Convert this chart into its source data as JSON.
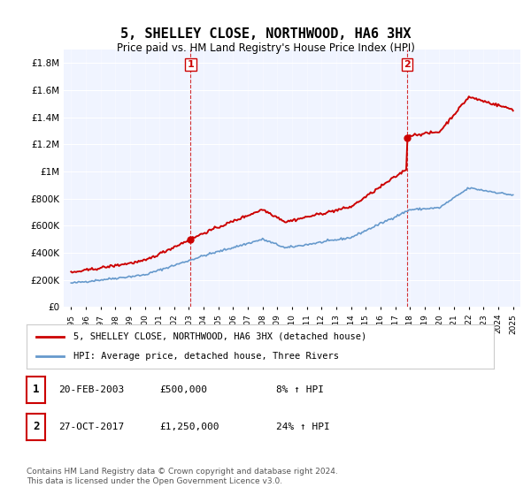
{
  "title": "5, SHELLEY CLOSE, NORTHWOOD, HA6 3HX",
  "subtitle": "Price paid vs. HM Land Registry's House Price Index (HPI)",
  "sale1_date": "20-FEB-2003",
  "sale1_price": "£500,000",
  "sale1_hpi": "8% ↑ HPI",
  "sale1_year": 2003.12,
  "sale1_value": 500000,
  "sale2_date": "27-OCT-2017",
  "sale2_price": "£1,250,000",
  "sale2_hpi": "24% ↑ HPI",
  "sale2_year": 2017.82,
  "sale2_value": 1250000,
  "legend_label1": "5, SHELLEY CLOSE, NORTHWOOD, HA6 3HX (detached house)",
  "legend_label2": "HPI: Average price, detached house, Three Rivers",
  "footer": "Contains HM Land Registry data © Crown copyright and database right 2024.\nThis data is licensed under the Open Government Licence v3.0.",
  "price_color": "#cc0000",
  "hpi_color": "#6699cc",
  "vline_color": "#cc0000",
  "background_color": "#ffffff",
  "plot_bg_color": "#f0f4ff",
  "ylim": [
    0,
    1900000
  ],
  "xlim_start": 1994.5,
  "xlim_end": 2025.5,
  "yticks": [
    0,
    200000,
    400000,
    600000,
    800000,
    1000000,
    1200000,
    1400000,
    1600000,
    1800000
  ],
  "ytick_labels": [
    "£0",
    "£200K",
    "£400K",
    "£600K",
    "£800K",
    "£1M",
    "£1.2M",
    "£1.4M",
    "£1.6M",
    "£1.8M"
  ],
  "xticks": [
    1995,
    1996,
    1997,
    1998,
    1999,
    2000,
    2001,
    2002,
    2003,
    2004,
    2005,
    2006,
    2007,
    2008,
    2009,
    2010,
    2011,
    2012,
    2013,
    2014,
    2015,
    2016,
    2017,
    2018,
    2019,
    2020,
    2021,
    2022,
    2023,
    2024,
    2025
  ]
}
